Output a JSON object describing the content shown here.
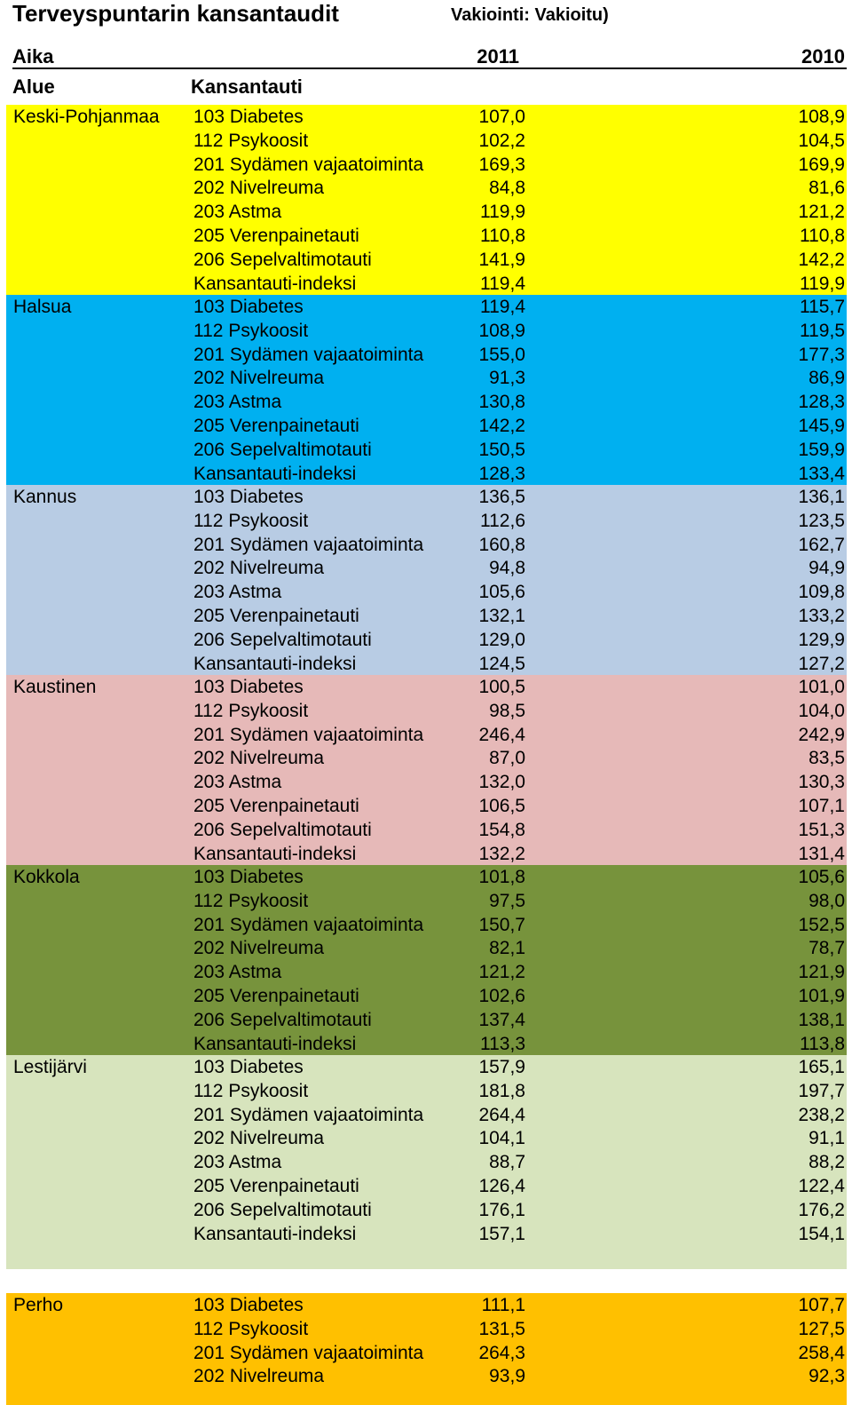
{
  "title": "Terveyspuntarin kansantaudit",
  "subtitle": "Vakiointi: Vakioitu)",
  "header": {
    "time_label": "Aika",
    "year_a": "2011",
    "year_b": "2010",
    "area_label": "Alue",
    "disease_label": "Kansantauti"
  },
  "groups": [
    {
      "area": "Keski-Pohjanmaa",
      "color": "#ffff00",
      "rows": [
        [
          "103 Diabetes",
          "107,0",
          "108,9"
        ],
        [
          "112 Psykoosit",
          "102,2",
          "104,5"
        ],
        [
          "201 Sydämen vajaatoiminta",
          "169,3",
          "169,9"
        ],
        [
          "202 Nivelreuma",
          "84,8",
          "81,6"
        ],
        [
          "203 Astma",
          "119,9",
          "121,2"
        ],
        [
          "205 Verenpainetauti",
          "110,8",
          "110,8"
        ],
        [
          "206 Sepelvaltimotauti",
          "141,9",
          "142,2"
        ],
        [
          "Kansantauti-indeksi",
          "119,4",
          "119,9"
        ]
      ]
    },
    {
      "area": "Halsua",
      "color": "#00b0f0",
      "rows": [
        [
          "103 Diabetes",
          "119,4",
          "115,7"
        ],
        [
          "112 Psykoosit",
          "108,9",
          "119,5"
        ],
        [
          "201 Sydämen vajaatoiminta",
          "155,0",
          "177,3"
        ],
        [
          "202 Nivelreuma",
          "91,3",
          "86,9"
        ],
        [
          "203 Astma",
          "130,8",
          "128,3"
        ],
        [
          "205 Verenpainetauti",
          "142,2",
          "145,9"
        ],
        [
          "206 Sepelvaltimotauti",
          "150,5",
          "159,9"
        ],
        [
          "Kansantauti-indeksi",
          "128,3",
          "133,4"
        ]
      ]
    },
    {
      "area": "Kannus",
      "color": "#b8cce4",
      "rows": [
        [
          "103 Diabetes",
          "136,5",
          "136,1"
        ],
        [
          "112 Psykoosit",
          "112,6",
          "123,5"
        ],
        [
          "201 Sydämen vajaatoiminta",
          "160,8",
          "162,7"
        ],
        [
          "202 Nivelreuma",
          "94,8",
          "94,9"
        ],
        [
          "203 Astma",
          "105,6",
          "109,8"
        ],
        [
          "205 Verenpainetauti",
          "132,1",
          "133,2"
        ],
        [
          "206 Sepelvaltimotauti",
          "129,0",
          "129,9"
        ],
        [
          "Kansantauti-indeksi",
          "124,5",
          "127,2"
        ]
      ]
    },
    {
      "area": "Kaustinen",
      "color": "#e6b9b8",
      "rows": [
        [
          "103 Diabetes",
          "100,5",
          "101,0"
        ],
        [
          "112 Psykoosit",
          "98,5",
          "104,0"
        ],
        [
          "201 Sydämen vajaatoiminta",
          "246,4",
          "242,9"
        ],
        [
          "202 Nivelreuma",
          "87,0",
          "83,5"
        ],
        [
          "203 Astma",
          "132,0",
          "130,3"
        ],
        [
          "205 Verenpainetauti",
          "106,5",
          "107,1"
        ],
        [
          "206 Sepelvaltimotauti",
          "154,8",
          "151,3"
        ],
        [
          "Kansantauti-indeksi",
          "132,2",
          "131,4"
        ]
      ]
    },
    {
      "area": "Kokkola",
      "color": "#77933c",
      "rows": [
        [
          "103 Diabetes",
          "101,8",
          "105,6"
        ],
        [
          "112 Psykoosit",
          "97,5",
          "98,0"
        ],
        [
          "201 Sydämen vajaatoiminta",
          "150,7",
          "152,5"
        ],
        [
          "202 Nivelreuma",
          "82,1",
          "78,7"
        ],
        [
          "203 Astma",
          "121,2",
          "121,9"
        ],
        [
          "205 Verenpainetauti",
          "102,6",
          "101,9"
        ],
        [
          "206 Sepelvaltimotauti",
          "137,4",
          "138,1"
        ],
        [
          "Kansantauti-indeksi",
          "113,3",
          "113,8"
        ]
      ]
    },
    {
      "area": "Lestijärvi",
      "color": "#d7e4bd",
      "rows": [
        [
          "103 Diabetes",
          "157,9",
          "165,1"
        ],
        [
          "112 Psykoosit",
          "181,8",
          "197,7"
        ],
        [
          "201 Sydämen vajaatoiminta",
          "264,4",
          "238,2"
        ],
        [
          "202 Nivelreuma",
          "104,1",
          "91,1"
        ],
        [
          "203 Astma",
          "88,7",
          "88,2"
        ],
        [
          "205 Verenpainetauti",
          "126,4",
          "122,4"
        ],
        [
          "206 Sepelvaltimotauti",
          "176,1",
          "176,2"
        ],
        [
          "Kansantauti-indeksi",
          "157,1",
          "154,1"
        ]
      ]
    },
    {
      "area": "Perho",
      "color": "#ffc000",
      "rows": [
        [
          "103 Diabetes",
          "111,1",
          "107,7"
        ],
        [
          "112 Psykoosit",
          "131,5",
          "127,5"
        ],
        [
          "201 Sydämen vajaatoiminta",
          "264,3",
          "258,4"
        ],
        [
          "202 Nivelreuma",
          "93,9",
          "92,3"
        ]
      ]
    }
  ]
}
